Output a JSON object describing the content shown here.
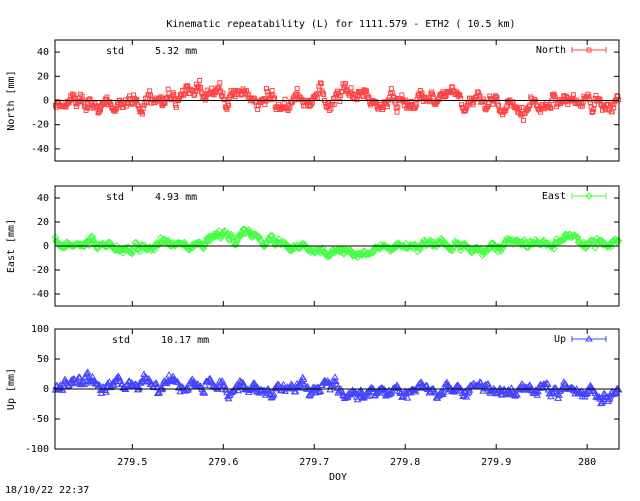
{
  "title": "Kinematic repeatability (L) for 1111.579 - ETH2  ( 10.5 km)",
  "timestamp": "18/10/22 22:37",
  "chart_data": [
    {
      "type": "scatter",
      "series_name": "North",
      "ylabel": "North [mm]",
      "std_label": "std",
      "std_value": "5.32 mm",
      "color": "#ff4444",
      "marker": "square",
      "ylim": [
        -50,
        50
      ],
      "yticks": [
        -40,
        -20,
        0,
        20,
        40
      ],
      "ytick_labels": [
        "-40",
        "-20",
        "0",
        "20",
        "40"
      ],
      "xlim": [
        279.415,
        280.035
      ],
      "noise_amplitude": 5.3,
      "trend": [
        [
          279.415,
          -3
        ],
        [
          279.47,
          -2
        ],
        [
          279.5,
          -4
        ],
        [
          279.55,
          2
        ],
        [
          279.58,
          8
        ],
        [
          279.62,
          5
        ],
        [
          279.66,
          -2
        ],
        [
          279.7,
          0
        ],
        [
          279.75,
          2
        ],
        [
          279.8,
          -1
        ],
        [
          279.85,
          2
        ],
        [
          279.9,
          1
        ],
        [
          279.95,
          -2
        ],
        [
          280.0,
          1
        ],
        [
          280.035,
          0
        ]
      ]
    },
    {
      "type": "scatter",
      "series_name": "East",
      "ylabel": "East [mm]",
      "std_label": "std",
      "std_value": "4.93 mm",
      "color": "#44ff44",
      "marker": "diamond",
      "ylim": [
        -50,
        50
      ],
      "yticks": [
        -40,
        -20,
        0,
        20,
        40
      ],
      "ytick_labels": [
        "-40",
        "-20",
        "0",
        "20",
        "40"
      ],
      "xlim": [
        279.415,
        280.035
      ],
      "noise_amplitude": 3.0,
      "trend": [
        [
          279.415,
          3
        ],
        [
          279.47,
          2
        ],
        [
          279.5,
          -1
        ],
        [
          279.55,
          2
        ],
        [
          279.6,
          7
        ],
        [
          279.63,
          8
        ],
        [
          279.66,
          2
        ],
        [
          279.7,
          -6
        ],
        [
          279.75,
          -4
        ],
        [
          279.8,
          -2
        ],
        [
          279.85,
          0
        ],
        [
          279.9,
          1
        ],
        [
          279.95,
          2
        ],
        [
          280.0,
          3
        ],
        [
          280.035,
          1
        ]
      ]
    },
    {
      "type": "scatter",
      "series_name": "Up",
      "ylabel": "Up [mm]",
      "std_label": "std",
      "std_value": "10.17 mm",
      "color": "#4444ff",
      "marker": "triangle",
      "ylim": [
        -100,
        100
      ],
      "yticks": [
        -100,
        -50,
        0,
        50,
        100
      ],
      "ytick_labels": [
        "-100",
        "-50",
        "0",
        "50",
        "100"
      ],
      "xlim": [
        279.415,
        280.035
      ],
      "noise_amplitude": 8.0,
      "trend": [
        [
          279.415,
          -2
        ],
        [
          279.45,
          12
        ],
        [
          279.5,
          8
        ],
        [
          279.55,
          6
        ],
        [
          279.6,
          5
        ],
        [
          279.65,
          -5
        ],
        [
          279.7,
          2
        ],
        [
          279.75,
          -5
        ],
        [
          279.8,
          -4
        ],
        [
          279.85,
          -3
        ],
        [
          279.9,
          0
        ],
        [
          279.95,
          -2
        ],
        [
          280.0,
          -3
        ],
        [
          280.035,
          -4
        ]
      ]
    }
  ],
  "x_axis": {
    "label": "DOY",
    "ticks": [
      279.5,
      279.6,
      279.7,
      279.8,
      279.9,
      280.0
    ],
    "tick_labels": [
      "279.5",
      "279.6",
      "279.7",
      "279.8",
      "279.9",
      "280"
    ]
  }
}
